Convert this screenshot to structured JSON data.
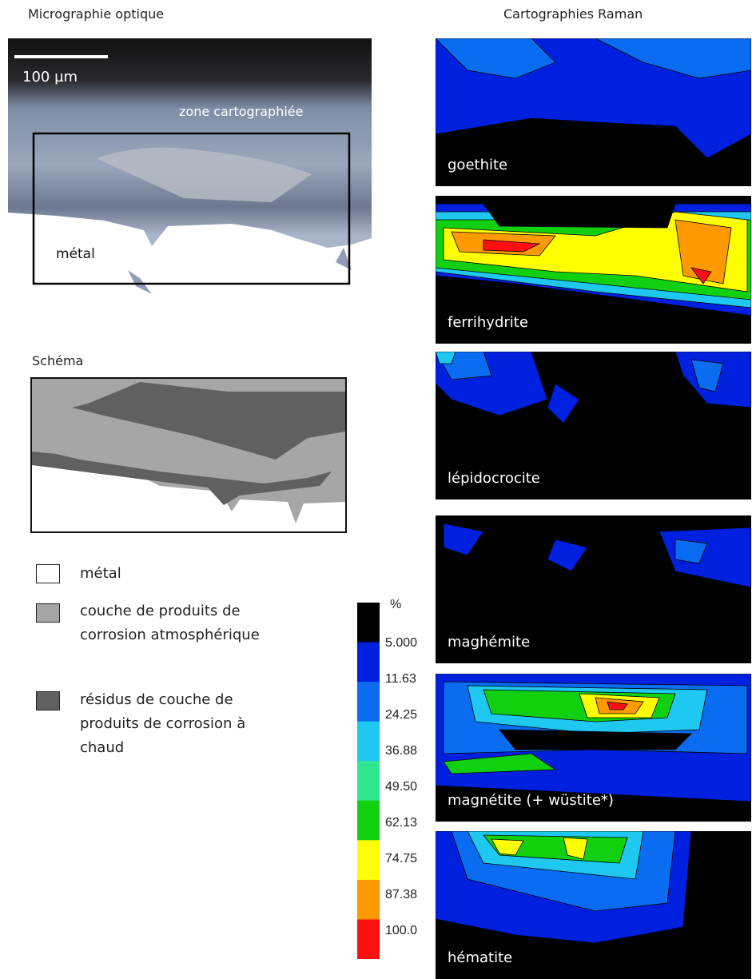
{
  "optical": {
    "title": "Micrographie optique",
    "scale_bar": "100 µm",
    "zone_label": "zone cartographiée",
    "metal_label": "métal"
  },
  "schema": {
    "title": "Schéma"
  },
  "legend": [
    {
      "label": "métal"
    },
    {
      "label": "couche de produits de corrosion atmosphérique"
    },
    {
      "label": "résidus de couche de produits de corrosion à chaud"
    }
  ],
  "colorbar": {
    "unit": "%",
    "labels": [
      "5.000",
      "11.63",
      "24.25",
      "36.88",
      "49.50",
      "62.13",
      "74.75",
      "87.38",
      "100.0"
    ]
  },
  "raman": {
    "title": "Cartographies Raman",
    "maps": [
      "goethite",
      "ferrihydrite",
      "lépidocrocite",
      "maghémite",
      "magnétite (+ wüstite*)",
      "hématite"
    ]
  }
}
